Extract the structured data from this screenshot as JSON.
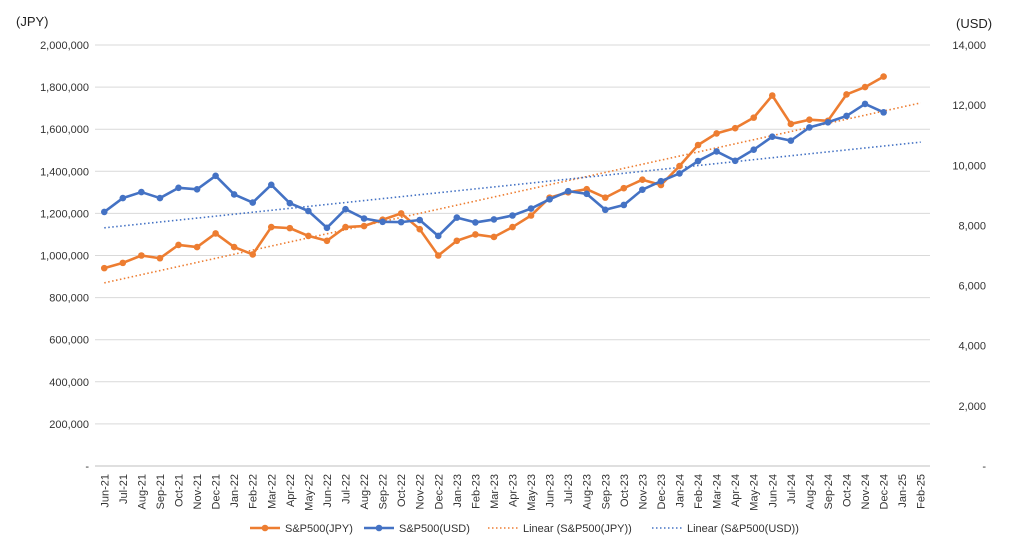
{
  "chart_data": {
    "type": "line",
    "title": "",
    "xlabel": "",
    "ylabel_left": "(JPY)",
    "ylabel_right": "(USD)",
    "ylim_left": [
      0,
      2000000
    ],
    "ylim_right": [
      0,
      14000
    ],
    "yticks_left": [
      "-",
      "200,000",
      "400,000",
      "600,000",
      "800,000",
      "1,000,000",
      "1,200,000",
      "1,400,000",
      "1,600,000",
      "1,800,000",
      "2,000,000"
    ],
    "yticks_right": [
      "-",
      "2,000",
      "4,000",
      "6,000",
      "8,000",
      "10,000",
      "12,000",
      "14,000"
    ],
    "categories": [
      "Jun-21",
      "Jul-21",
      "Aug-21",
      "Sep-21",
      "Oct-21",
      "Nov-21",
      "Dec-21",
      "Jan-22",
      "Feb-22",
      "Mar-22",
      "Apr-22",
      "May-22",
      "Jun-22",
      "Jul-22",
      "Aug-22",
      "Sep-22",
      "Oct-22",
      "Nov-22",
      "Dec-22",
      "Jan-23",
      "Feb-23",
      "Mar-23",
      "Apr-23",
      "May-23",
      "Jun-23",
      "Jul-23",
      "Aug-23",
      "Sep-23",
      "Oct-23",
      "Nov-23",
      "Dec-23",
      "Jan-24",
      "Feb-24",
      "Mar-24",
      "Apr-24",
      "May-24",
      "Jun-24",
      "Jul-24",
      "Aug-24",
      "Sep-24",
      "Oct-24",
      "Nov-24",
      "Dec-24",
      "Jan-25",
      "Feb-25"
    ],
    "grid": true,
    "legend_position": "bottom",
    "series": [
      {
        "name": "S&P500(JPY)",
        "axis": "left",
        "color": "#ED7D31",
        "style": "solid-markers",
        "values": [
          940000,
          965000,
          1000000,
          987000,
          1050000,
          1040000,
          1105000,
          1040000,
          1005000,
          1135000,
          1130000,
          1093000,
          1070000,
          1135000,
          1140000,
          1170000,
          1200000,
          1125000,
          1000000,
          1070000,
          1100000,
          1088000,
          1135000,
          1190000,
          1275000,
          1300000,
          1315000,
          1275000,
          1320000,
          1360000,
          1335000,
          1425000,
          1525000,
          1580000,
          1605000,
          1655000,
          1760000,
          1625000,
          1645000,
          1640000,
          1765000,
          1800000,
          1850000,
          null,
          null
        ]
      },
      {
        "name": "S&P500(USD)",
        "axis": "right",
        "color": "#4472C4",
        "style": "solid-markers",
        "values": [
          8450,
          8910,
          9110,
          8910,
          9250,
          9200,
          9650,
          9030,
          8760,
          9350,
          8740,
          8480,
          7920,
          8540,
          8230,
          8120,
          8110,
          8180,
          7650,
          8260,
          8100,
          8200,
          8330,
          8560,
          8870,
          9140,
          9050,
          8520,
          8680,
          9190,
          9470,
          9730,
          10140,
          10460,
          10150,
          10520,
          10950,
          10820,
          11260,
          11430,
          11640,
          12040,
          11760,
          null,
          null
        ]
      },
      {
        "name": "Linear (S&P500(JPY))",
        "axis": "left",
        "color": "#ED7D31",
        "style": "dotted",
        "trend": [
          870000,
          1725000
        ]
      },
      {
        "name": "Linear (S&P500(USD))",
        "axis": "right",
        "color": "#4472C4",
        "style": "dotted",
        "trend": [
          7920,
          10770
        ]
      }
    ]
  }
}
